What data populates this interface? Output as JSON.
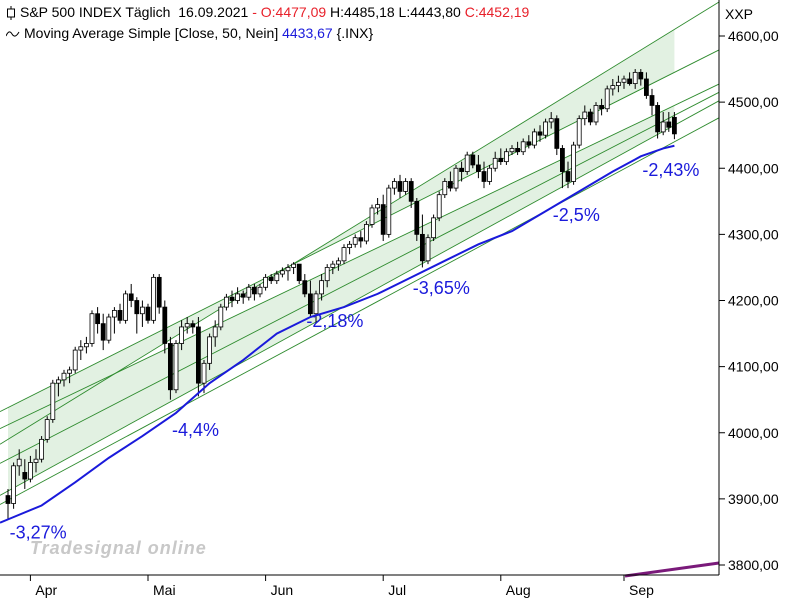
{
  "header": {
    "instrument": "S&P 500 INDEX Täglich",
    "date": "16.09.2021",
    "open_label": "O:",
    "open": "4477,09",
    "high_label": "H:",
    "high": "4485,18",
    "low_label": "L:",
    "low": "4443,80",
    "close_label": "C:",
    "close": "4452,19",
    "sep": " - ",
    "ma_label": "Moving Average Simple [Close, 50, Nein]",
    "ma_value": "4433,67",
    "ma_symbol": "{.INX}",
    "icons": [
      "candlestick-icon",
      "moving-average-icon"
    ]
  },
  "axis": {
    "currency": "XXP"
  },
  "watermark": "Tradesignal online",
  "colors": {
    "up": "#ffffff",
    "down": "#000000",
    "wick": "#000000",
    "channel_line": "#2e8b2e",
    "channel_fill": "#dff0df",
    "ma": "#1a1adb",
    "annotation": "#1a1adb",
    "purple": "#7a1a7a",
    "red_value": "#e8202a"
  },
  "chart_data": {
    "type": "candlestick",
    "title": "S&P 500 INDEX Täglich",
    "y_ticks": [
      3800,
      3900,
      4000,
      4100,
      4200,
      4300,
      4400,
      4500,
      4600
    ],
    "y_tick_labels": [
      "3800,00",
      "3900,00",
      "4000,00",
      "4100,00",
      "4200,00",
      "4300,00",
      "4400,00",
      "4500,00",
      "4600,00"
    ],
    "x_month_labels": [
      {
        "label": "Apr",
        "index": 4
      },
      {
        "label": "Mai",
        "index": 25
      },
      {
        "label": "Jun",
        "index": 46
      },
      {
        "label": "Jul",
        "index": 67
      },
      {
        "label": "Aug",
        "index": 88
      },
      {
        "label": "Sep",
        "index": 110
      }
    ],
    "ylim": [
      3790,
      4630
    ],
    "ohlc": [
      [
        3905,
        3915,
        3870,
        3893
      ],
      [
        3893,
        3955,
        3885,
        3950
      ],
      [
        3950,
        3975,
        3935,
        3960
      ],
      [
        3940,
        3960,
        3915,
        3930
      ],
      [
        3930,
        3965,
        3925,
        3955
      ],
      [
        3955,
        3975,
        3940,
        3960
      ],
      [
        3960,
        3995,
        3955,
        3990
      ],
      [
        3990,
        4025,
        3985,
        4020
      ],
      [
        4020,
        4080,
        4015,
        4075
      ],
      [
        4075,
        4085,
        4055,
        4080
      ],
      [
        4080,
        4095,
        4070,
        4090
      ],
      [
        4090,
        4100,
        4075,
        4095
      ],
      [
        4095,
        4130,
        4090,
        4125
      ],
      [
        4125,
        4140,
        4110,
        4130
      ],
      [
        4130,
        4145,
        4120,
        4135
      ],
      [
        4135,
        4185,
        4130,
        4180
      ],
      [
        4180,
        4190,
        4150,
        4165
      ],
      [
        4165,
        4180,
        4125,
        4140
      ],
      [
        4140,
        4180,
        4135,
        4175
      ],
      [
        4175,
        4190,
        4150,
        4185
      ],
      [
        4185,
        4195,
        4165,
        4170
      ],
      [
        4170,
        4215,
        4165,
        4210
      ],
      [
        4210,
        4225,
        4190,
        4200
      ],
      [
        4200,
        4205,
        4150,
        4180
      ],
      [
        4180,
        4200,
        4160,
        4190
      ],
      [
        4190,
        4195,
        4165,
        4170
      ],
      [
        4170,
        4240,
        4165,
        4235
      ],
      [
        4235,
        4240,
        4180,
        4190
      ],
      [
        4190,
        4200,
        4120,
        4135
      ],
      [
        4135,
        4145,
        4050,
        4065
      ],
      [
        4065,
        4140,
        4060,
        4135
      ],
      [
        4135,
        4170,
        4125,
        4160
      ],
      [
        4160,
        4175,
        4150,
        4165
      ],
      [
        4165,
        4170,
        4150,
        4160
      ],
      [
        4160,
        4175,
        4055,
        4075
      ],
      [
        4075,
        4110,
        4060,
        4105
      ],
      [
        4105,
        4150,
        4095,
        4145
      ],
      [
        4145,
        4170,
        4130,
        4160
      ],
      [
        4160,
        4195,
        4155,
        4190
      ],
      [
        4190,
        4210,
        4185,
        4205
      ],
      [
        4205,
        4215,
        4190,
        4200
      ],
      [
        4200,
        4220,
        4195,
        4210
      ],
      [
        4210,
        4215,
        4195,
        4205
      ],
      [
        4205,
        4225,
        4200,
        4220
      ],
      [
        4220,
        4225,
        4200,
        4210
      ],
      [
        4210,
        4225,
        4205,
        4220
      ],
      [
        4220,
        4240,
        4215,
        4235
      ],
      [
        4235,
        4240,
        4225,
        4230
      ],
      [
        4230,
        4245,
        4225,
        4240
      ],
      [
        4240,
        4250,
        4235,
        4245
      ],
      [
        4245,
        4255,
        4230,
        4250
      ],
      [
        4250,
        4258,
        4240,
        4255
      ],
      [
        4255,
        4255,
        4225,
        4230
      ],
      [
        4230,
        4240,
        4205,
        4210
      ],
      [
        4210,
        4230,
        4175,
        4180
      ],
      [
        4180,
        4215,
        4165,
        4210
      ],
      [
        4210,
        4240,
        4200,
        4230
      ],
      [
        4230,
        4255,
        4220,
        4250
      ],
      [
        4250,
        4260,
        4240,
        4255
      ],
      [
        4255,
        4265,
        4245,
        4260
      ],
      [
        4260,
        4285,
        4255,
        4280
      ],
      [
        4280,
        4290,
        4270,
        4285
      ],
      [
        4285,
        4300,
        4280,
        4295
      ],
      [
        4295,
        4305,
        4280,
        4290
      ],
      [
        4290,
        4320,
        4285,
        4315
      ],
      [
        4315,
        4345,
        4310,
        4340
      ],
      [
        4340,
        4355,
        4330,
        4345
      ],
      [
        4345,
        4360,
        4290,
        4300
      ],
      [
        4300,
        4375,
        4295,
        4370
      ],
      [
        4370,
        4385,
        4360,
        4380
      ],
      [
        4380,
        4390,
        4355,
        4365
      ],
      [
        4365,
        4385,
        4360,
        4380
      ],
      [
        4380,
        4385,
        4340,
        4350
      ],
      [
        4350,
        4355,
        4290,
        4300
      ],
      [
        4300,
        4330,
        4250,
        4260
      ],
      [
        4260,
        4300,
        4255,
        4295
      ],
      [
        4295,
        4330,
        4290,
        4325
      ],
      [
        4325,
        4365,
        4320,
        4360
      ],
      [
        4360,
        4385,
        4355,
        4380
      ],
      [
        4380,
        4395,
        4365,
        4370
      ],
      [
        4370,
        4405,
        4365,
        4400
      ],
      [
        4400,
        4410,
        4380,
        4395
      ],
      [
        4395,
        4425,
        4390,
        4420
      ],
      [
        4420,
        4425,
        4400,
        4405
      ],
      [
        4405,
        4420,
        4385,
        4395
      ],
      [
        4395,
        4410,
        4370,
        4380
      ],
      [
        4380,
        4405,
        4375,
        4400
      ],
      [
        4400,
        4425,
        4395,
        4415
      ],
      [
        4415,
        4430,
        4405,
        4410
      ],
      [
        4410,
        4430,
        4405,
        4425
      ],
      [
        4425,
        4435,
        4420,
        4430
      ],
      [
        4430,
        4440,
        4420,
        4425
      ],
      [
        4425,
        4445,
        4420,
        4440
      ],
      [
        4440,
        4450,
        4430,
        4435
      ],
      [
        4435,
        4460,
        4430,
        4455
      ],
      [
        4455,
        4465,
        4440,
        4450
      ],
      [
        4450,
        4475,
        4445,
        4470
      ],
      [
        4470,
        4485,
        4460,
        4475
      ],
      [
        4475,
        4480,
        4420,
        4430
      ],
      [
        4430,
        4435,
        4370,
        4395
      ],
      [
        4395,
        4410,
        4370,
        4380
      ],
      [
        4380,
        4440,
        4375,
        4435
      ],
      [
        4435,
        4480,
        4430,
        4475
      ],
      [
        4475,
        4495,
        4465,
        4485
      ],
      [
        4485,
        4490,
        4465,
        4470
      ],
      [
        4470,
        4500,
        4465,
        4495
      ],
      [
        4495,
        4505,
        4480,
        4490
      ],
      [
        4490,
        4525,
        4485,
        4520
      ],
      [
        4520,
        4535,
        4510,
        4525
      ],
      [
        4525,
        4540,
        4515,
        4530
      ],
      [
        4530,
        4540,
        4520,
        4535
      ],
      [
        4535,
        4545,
        4525,
        4528
      ],
      [
        4528,
        4550,
        4520,
        4545
      ],
      [
        4545,
        4550,
        4525,
        4535
      ],
      [
        4535,
        4545,
        4505,
        4510
      ],
      [
        4510,
        4520,
        4480,
        4495
      ],
      [
        4495,
        4500,
        4445,
        4455
      ],
      [
        4455,
        4485,
        4450,
        4470
      ],
      [
        4470,
        4485,
        4455,
        4462
      ],
      [
        4477,
        4485,
        4444,
        4452
      ]
    ],
    "ma50": [
      [
        0,
        3869
      ],
      [
        6,
        3890
      ],
      [
        12,
        3925
      ],
      [
        18,
        3962
      ],
      [
        24,
        3995
      ],
      [
        30,
        4030
      ],
      [
        36,
        4075
      ],
      [
        42,
        4110
      ],
      [
        48,
        4150
      ],
      [
        54,
        4175
      ],
      [
        60,
        4190
      ],
      [
        66,
        4210
      ],
      [
        72,
        4235
      ],
      [
        78,
        4260
      ],
      [
        84,
        4285
      ],
      [
        90,
        4305
      ],
      [
        96,
        4335
      ],
      [
        102,
        4365
      ],
      [
        108,
        4395
      ],
      [
        113,
        4418
      ],
      [
        117,
        4430
      ],
      [
        119,
        4434
      ]
    ],
    "channel": {
      "upper_outer": [
        [
          0,
          4038
        ],
        [
          119,
          4545
        ]
      ],
      "upper_inner": [
        [
          0,
          4012
        ],
        [
          119,
          4495
        ]
      ],
      "middle": [
        [
          0,
          3960
        ],
        [
          119,
          4480
        ]
      ],
      "lower_inner": [
        [
          0,
          3912
        ],
        [
          119,
          4465
        ]
      ],
      "lower_outer": [
        [
          0,
          3898
        ],
        [
          119,
          4440
        ]
      ],
      "outer_top": [
        [
          0,
          3990
        ],
        [
          119,
          4610
        ]
      ]
    },
    "annotations": [
      {
        "text": "-3,27%",
        "index": 1,
        "price": 3840
      },
      {
        "text": "-4,4%",
        "index": 30,
        "price": 3995
      },
      {
        "text": "-2,18%",
        "index": 54,
        "price": 4160
      },
      {
        "text": "-3,65%",
        "index": 73,
        "price": 4210
      },
      {
        "text": "-2,5%",
        "index": 98,
        "price": 4320
      },
      {
        "text": "-2,43%",
        "index": 114,
        "price": 4388
      }
    ]
  }
}
